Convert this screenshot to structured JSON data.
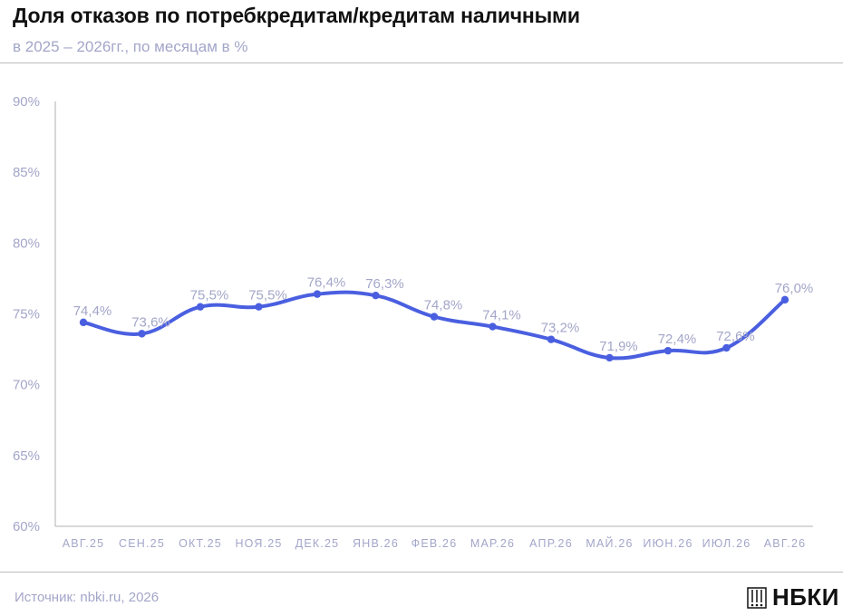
{
  "header": {
    "title": "Доля отказов по потребкредитам/кредитам наличными",
    "subtitle": "в 2025 – 2026гг., по месяцам в %"
  },
  "footer": {
    "source": "Источник: nbki.ru, 2026",
    "logo_text": "НБКИ",
    "logo_icon": "columns-building-icon"
  },
  "colors": {
    "line": "#4a5fe0",
    "axis_text": "#a3a6c9",
    "data_label": "#a3a6c9",
    "axis_line": "#b0b0b0"
  },
  "chart_data": {
    "type": "line",
    "categories": [
      "АВГ.25",
      "СЕН.25",
      "ОКТ.25",
      "НОЯ.25",
      "ДЕК.25",
      "ЯНВ.26",
      "ФЕВ.26",
      "МАР.26",
      "АПР.26",
      "МАЙ.26",
      "ИЮН.26",
      "ИЮЛ.26",
      "АВГ.26"
    ],
    "values": [
      74.4,
      73.6,
      75.5,
      75.5,
      76.4,
      76.3,
      74.8,
      74.1,
      73.2,
      71.9,
      72.4,
      72.6,
      76.0
    ],
    "data_labels": [
      "74,4%",
      "73,6%",
      "75,5%",
      "75,5%",
      "76,4%",
      "76,3%",
      "74,8%",
      "74,1%",
      "73,2%",
      "71,9%",
      "72,4%",
      "72,6%",
      "76,0%"
    ],
    "yticks": [
      60,
      65,
      70,
      75,
      80,
      85,
      90
    ],
    "ytick_labels": [
      "60%",
      "65%",
      "70%",
      "75%",
      "80%",
      "85%",
      "90%"
    ],
    "ylim": [
      60,
      90
    ],
    "grid": false,
    "smooth": true,
    "markers": true
  }
}
